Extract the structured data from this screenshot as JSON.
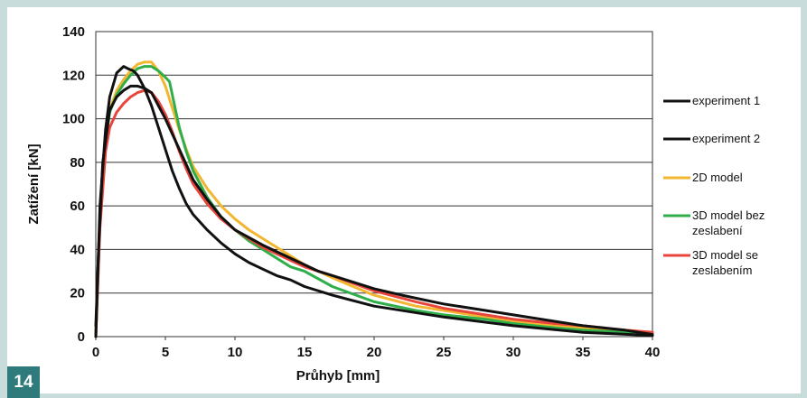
{
  "figure": {
    "number": "14"
  },
  "colors": {
    "experiment": "#111111",
    "model2d": "#f2b630",
    "model3d_bez": "#2fae4a",
    "model3d_se": "#e8453c"
  },
  "chart_data": {
    "type": "line",
    "xlabel": "Průhyb [mm]",
    "ylabel": "Zatížení [kN]",
    "xlim": [
      0,
      40
    ],
    "ylim": [
      0,
      140
    ],
    "xticks": [
      0,
      5,
      10,
      15,
      20,
      25,
      30,
      35,
      40
    ],
    "yticks": [
      0,
      20,
      40,
      60,
      80,
      100,
      120,
      140
    ],
    "grid": "horizontal",
    "legend_position": "right",
    "series": [
      {
        "name": "experiment 1",
        "color": "#111111",
        "x": [
          0,
          0.3,
          0.7,
          1.0,
          1.5,
          2.0,
          2.3,
          2.7,
          3.0,
          3.5,
          4.0,
          4.5,
          5.0,
          5.5,
          6.0,
          6.5,
          7.0,
          8.0,
          9.0,
          10.0,
          11.0,
          12.0,
          13.0,
          14.0,
          15.0,
          17.0,
          20.0,
          25.0,
          30.0,
          35.0,
          40.0
        ],
        "y": [
          0,
          60,
          95,
          110,
          121,
          124,
          123,
          122,
          120,
          114,
          106,
          96,
          86,
          76,
          68,
          61,
          56,
          49,
          43,
          38,
          34,
          31,
          28,
          26,
          23,
          19,
          14,
          9,
          5,
          2,
          0.5
        ]
      },
      {
        "name": "experiment 2",
        "color": "#111111",
        "x": [
          0,
          0.2,
          0.5,
          1.0,
          1.5,
          2.0,
          2.5,
          3.0,
          3.5,
          4.0,
          5.0,
          6.0,
          7.0,
          8.0,
          9.0,
          10.0,
          12.0,
          14.0,
          16.0,
          18.0,
          20.0,
          22.0,
          25.0,
          28.0,
          30.0,
          33.0,
          35.0,
          38.0,
          40.0
        ],
        "y": [
          5,
          40,
          80,
          104,
          110,
          113,
          115,
          115,
          114,
          112,
          100,
          86,
          72,
          63,
          55,
          49,
          42,
          36,
          30,
          26,
          22,
          19,
          15,
          12,
          10,
          7,
          5,
          3,
          1
        ]
      },
      {
        "name": "2D model",
        "color": "#f2b630",
        "x": [
          0,
          0.3,
          0.7,
          1.0,
          1.5,
          2.0,
          2.5,
          3.0,
          3.5,
          4.0,
          4.5,
          5.0,
          5.5,
          6.0,
          6.5,
          7.0,
          8.0,
          9.0,
          10.0,
          11.0,
          12.0,
          13.0,
          14.0,
          15.0,
          17.0,
          20.0,
          23.0,
          25.0,
          28.0,
          30.0,
          33.0,
          35.0,
          38.0,
          40.0
        ],
        "y": [
          0,
          55,
          90,
          104,
          113,
          118,
          122,
          125,
          126,
          126,
          122,
          115,
          105,
          95,
          86,
          78,
          68,
          60,
          54,
          49,
          45,
          41,
          37,
          33,
          27,
          19,
          14,
          12,
          9,
          7,
          5,
          4,
          3,
          2
        ]
      },
      {
        "name": "3D model bez zeslabení",
        "color": "#2fae4a",
        "x": [
          0,
          0.3,
          0.7,
          1.0,
          1.5,
          2.0,
          2.5,
          3.0,
          3.5,
          4.0,
          4.5,
          5.0,
          5.3,
          5.6,
          6.0,
          6.5,
          7.0,
          8.0,
          9.0,
          10.0,
          11.0,
          12.0,
          13.0,
          14.0,
          15.0,
          17.0,
          20.0,
          23.0,
          25.0,
          28.0,
          30.0,
          33.0,
          35.0,
          38.0,
          40.0
        ],
        "y": [
          0,
          55,
          90,
          103,
          111,
          116,
          120,
          123,
          124,
          124,
          122,
          119,
          117,
          108,
          96,
          85,
          76,
          64,
          55,
          49,
          44,
          40,
          36,
          32,
          30,
          23,
          16,
          12,
          10,
          8,
          6,
          4,
          3,
          2,
          1
        ]
      },
      {
        "name": "3D model se zeslabením",
        "color": "#e8453c",
        "x": [
          0,
          0.3,
          0.7,
          1.0,
          1.5,
          2.0,
          2.5,
          3.0,
          3.5,
          4.0,
          4.5,
          5.0,
          5.5,
          6.0,
          6.5,
          7.0,
          8.0,
          9.0,
          10.0,
          11.0,
          12.0,
          13.0,
          14.0,
          15.0,
          17.0,
          20.0,
          23.0,
          25.0,
          28.0,
          30.0,
          33.0,
          35.0,
          38.0,
          40.0
        ],
        "y": [
          0,
          50,
          85,
          96,
          103,
          107,
          110,
          112,
          113,
          112,
          108,
          102,
          94,
          85,
          77,
          70,
          61,
          54,
          49,
          45,
          41,
          38,
          35,
          32,
          28,
          21,
          16,
          13,
          10,
          8,
          6,
          5,
          3,
          2
        ]
      }
    ],
    "legend": [
      {
        "lines": [
          "experiment 1"
        ],
        "color": "#111111"
      },
      {
        "lines": [
          "experiment 2"
        ],
        "color": "#111111"
      },
      {
        "lines": [
          "2D model"
        ],
        "color": "#f2b630"
      },
      {
        "lines": [
          "3D model bez",
          "zeslabení"
        ],
        "color": "#2fae4a"
      },
      {
        "lines": [
          "3D model se",
          "zeslabením"
        ],
        "color": "#e8453c"
      }
    ]
  }
}
